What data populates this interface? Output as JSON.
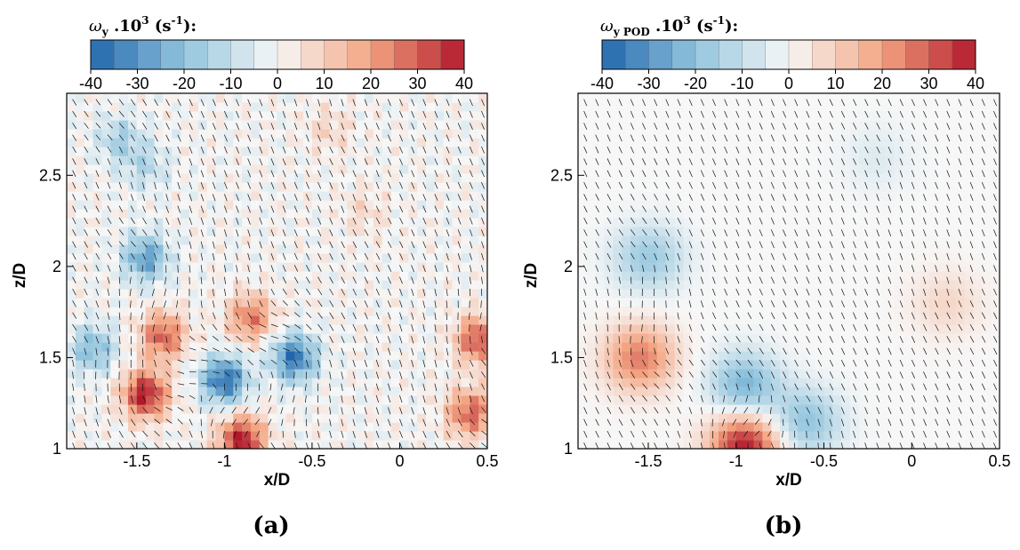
{
  "chart_data": [
    {
      "type": "heatmap",
      "panel": "(a)",
      "colorbar": {
        "title_symbol": "ω",
        "title_sub": "y",
        "title_text": " .10",
        "title_sup": "3",
        "title_unit": " (s",
        "title_unit_sup": "-1",
        "title_tail": "):",
        "range": [
          -40,
          40
        ],
        "ticks": [
          "-40",
          "-30",
          "-20",
          "-10",
          "0",
          "10",
          "20",
          "30",
          "40"
        ],
        "colors": [
          "#2166ac",
          "#f7f7f7",
          "#b2182b"
        ]
      },
      "xlabel": "x/D",
      "ylabel": "z/D",
      "xlim": [
        -1.9,
        0.5
      ],
      "ylim": [
        1.0,
        2.95
      ],
      "xticks": [
        "-1.5",
        "-1",
        "-0.5",
        "0",
        "0.5"
      ],
      "yticks": [
        "1",
        "1.5",
        "2",
        "2.5"
      ],
      "features": [
        {
          "x": -1.6,
          "z": 2.7,
          "value": -15
        },
        {
          "x": -1.45,
          "z": 2.55,
          "value": -12
        },
        {
          "x": -1.45,
          "z": 2.05,
          "value": -28
        },
        {
          "x": -1.75,
          "z": 1.55,
          "value": -22
        },
        {
          "x": -1.45,
          "z": 1.3,
          "value": 40
        },
        {
          "x": -1.35,
          "z": 1.62,
          "value": 30
        },
        {
          "x": -0.85,
          "z": 1.72,
          "value": 26
        },
        {
          "x": -1.0,
          "z": 1.38,
          "value": -38
        },
        {
          "x": -0.6,
          "z": 1.5,
          "value": -36
        },
        {
          "x": -0.9,
          "z": 1.05,
          "value": 40
        },
        {
          "x": 0.45,
          "z": 1.6,
          "value": 32
        },
        {
          "x": 0.4,
          "z": 1.2,
          "value": 30
        },
        {
          "x": -0.2,
          "z": 2.3,
          "value": 7
        },
        {
          "x": -0.4,
          "z": 2.75,
          "value": 8
        }
      ]
    },
    {
      "type": "heatmap",
      "panel": "(b)",
      "colorbar": {
        "title_symbol": "ω",
        "title_sub": "y POD",
        "title_text": " .10",
        "title_sup": "3",
        "title_unit": " (s",
        "title_unit_sup": "-1",
        "title_tail": "):",
        "range": [
          -40,
          40
        ],
        "ticks": [
          "-40",
          "-30",
          "-20",
          "-10",
          "0",
          "10",
          "20",
          "30",
          "40"
        ],
        "colors": [
          "#2166ac",
          "#f7f7f7",
          "#b2182b"
        ]
      },
      "xlabel": "x/D",
      "ylabel": "z/D",
      "xlim": [
        -1.9,
        0.5
      ],
      "ylim": [
        1.0,
        2.95
      ],
      "xticks": [
        "-1.5",
        "-1",
        "-0.5",
        "0",
        "0.5"
      ],
      "yticks": [
        "1",
        "1.5",
        "2",
        "2.5"
      ],
      "features": [
        {
          "x": -1.5,
          "z": 2.05,
          "value": -18
        },
        {
          "x": -1.55,
          "z": 1.5,
          "value": 26
        },
        {
          "x": -0.95,
          "z": 1.35,
          "value": -24
        },
        {
          "x": -0.6,
          "z": 1.15,
          "value": -20
        },
        {
          "x": -0.95,
          "z": 1.02,
          "value": 40
        },
        {
          "x": 0.2,
          "z": 1.8,
          "value": 8
        },
        {
          "x": -0.2,
          "z": 2.6,
          "value": -5
        }
      ]
    }
  ]
}
